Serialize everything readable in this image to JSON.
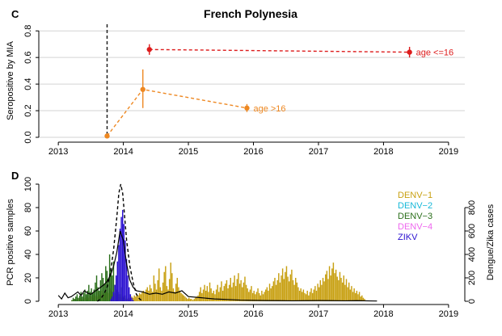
{
  "chart_data": [
    {
      "panel_label": "C",
      "type": "scatter",
      "title": "French Polynesia",
      "ylabel": "Seropositive by MIA",
      "xlabel": "",
      "xlim": [
        2012.7,
        2019.25
      ],
      "ylim": [
        0,
        0.85
      ],
      "x_ticks": [
        2013,
        2014,
        2015,
        2016,
        2017,
        2018,
        2019
      ],
      "y_ticks": [
        0.0,
        0.2,
        0.4,
        0.6,
        0.8
      ],
      "y_tick_labels": [
        "0.0",
        "0.2",
        "0.4",
        "0.6",
        "0.8"
      ],
      "grid": "horizontal",
      "vline_x": 2013.75,
      "series": [
        {
          "name": "age <=16",
          "color": "#dd1c1c",
          "points": [
            {
              "x": 2014.4,
              "y": 0.66,
              "lo": 0.62,
              "hi": 0.7
            },
            {
              "x": 2018.4,
              "y": 0.64,
              "lo": 0.6,
              "hi": 0.68
            }
          ]
        },
        {
          "name": "age >16",
          "color": "#ee8822",
          "points": [
            {
              "x": 2013.75,
              "y": 0.01,
              "lo": 0.0,
              "hi": 0.02
            },
            {
              "x": 2014.3,
              "y": 0.36,
              "lo": 0.22,
              "hi": 0.51
            },
            {
              "x": 2015.9,
              "y": 0.22,
              "lo": 0.19,
              "hi": 0.25
            }
          ]
        }
      ]
    },
    {
      "panel_label": "D",
      "type": "bar",
      "ylabel": "PCR positive samples",
      "y2label": "Dengue/Zika cases",
      "xlim": [
        2012.7,
        2019.25
      ],
      "ylim": [
        0,
        100
      ],
      "y2lim": [
        0,
        1000
      ],
      "x_ticks": [
        2013,
        2014,
        2015,
        2016,
        2017,
        2018,
        2019
      ],
      "y_ticks": [
        0,
        20,
        40,
        60,
        80,
        100
      ],
      "y2_ticks": [
        0,
        200,
        400,
        600,
        800
      ],
      "legend_position": "top-right",
      "series": [
        {
          "name": "DENV−1",
          "color": "#c8a012",
          "x_start": 2013.2,
          "step": 0.02,
          "values": [
            1,
            1,
            2,
            2,
            1,
            2,
            3,
            2,
            1,
            2,
            3,
            4,
            2,
            3,
            5,
            4,
            3,
            6,
            5,
            4,
            8,
            6,
            5,
            9,
            7,
            6,
            10,
            8,
            7,
            11,
            9,
            8,
            6,
            7,
            5,
            4,
            6,
            4,
            3,
            5,
            4,
            3,
            2,
            3,
            2,
            3,
            4,
            3,
            5,
            4,
            6,
            5,
            7,
            6,
            8,
            9,
            7,
            10,
            12,
            9,
            14,
            11,
            8,
            22,
            15,
            10,
            18,
            28,
            12,
            9,
            16,
            25,
            30,
            13,
            10,
            19,
            33,
            24,
            11,
            8,
            15,
            20,
            12,
            9,
            7,
            6,
            5,
            4,
            3,
            2,
            3,
            2,
            2,
            1,
            2,
            3,
            4,
            5,
            8,
            12,
            7,
            10,
            14,
            9,
            13,
            8,
            16,
            11,
            7,
            9,
            6,
            10,
            14,
            8,
            12,
            17,
            9,
            13,
            15,
            18,
            11,
            14,
            20,
            12,
            16,
            22,
            13,
            19,
            24,
            15,
            18,
            12,
            16,
            21,
            14,
            11,
            8,
            10,
            13,
            7,
            9,
            6,
            8,
            11,
            7,
            5,
            9,
            6,
            8,
            10,
            12,
            9,
            15,
            11,
            13,
            17,
            20,
            14,
            18,
            24,
            16,
            22,
            28,
            19,
            25,
            30,
            21,
            17,
            23,
            27,
            18,
            14,
            20,
            16,
            12,
            9,
            11,
            8,
            10,
            7,
            6,
            9,
            5,
            8,
            11,
            7,
            10,
            13,
            9,
            15,
            12,
            18,
            14,
            20,
            17,
            23,
            26,
            19,
            30,
            22,
            28,
            33,
            24,
            27,
            21,
            18,
            25,
            20,
            16,
            22,
            14,
            19,
            12,
            16,
            10,
            13,
            8,
            11,
            7,
            9,
            6,
            8,
            4,
            5,
            3,
            2
          ]
        },
        {
          "name": "DENV−2",
          "color": "#16b8d8",
          "x_start": 2013.2,
          "step": 0.02,
          "values": [
            0,
            0,
            1,
            0,
            1,
            0,
            0,
            1,
            0,
            1,
            0,
            1,
            0,
            0,
            1,
            0,
            0,
            1,
            0,
            0,
            1,
            0,
            1,
            0,
            0,
            1,
            0,
            0,
            1,
            0,
            0,
            1,
            0,
            0,
            1,
            0,
            0,
            0,
            1,
            0
          ]
        },
        {
          "name": "DENV−3",
          "color": "#2a6e1a",
          "x_start": 2013.2,
          "step": 0.02,
          "values": [
            1,
            3,
            2,
            4,
            6,
            3,
            5,
            8,
            4,
            7,
            10,
            6,
            9,
            14,
            8,
            11,
            7,
            10,
            16,
            22,
            12,
            9,
            18,
            24,
            20,
            15,
            30,
            26,
            18,
            40,
            28,
            22,
            34,
            14,
            10,
            20,
            8,
            6,
            12,
            4,
            3,
            5,
            2,
            1,
            2,
            1,
            0,
            1,
            0,
            0
          ]
        },
        {
          "name": "DENV−4",
          "color": "#ee66ee",
          "x_start": 2013.2,
          "step": 0.02,
          "values": [
            0,
            0,
            0,
            0,
            0,
            0,
            0,
            0,
            0,
            0
          ]
        },
        {
          "name": "ZIKV",
          "color": "#2a10d0",
          "x_start": 2013.8,
          "step": 0.02,
          "values": [
            2,
            4,
            8,
            14,
            22,
            34,
            48,
            62,
            72,
            78,
            66,
            52,
            36,
            22,
            12,
            6,
            3,
            1
          ]
        }
      ],
      "case_line": {
        "name": "Dengue/Zika cases",
        "color": "#000000",
        "x": [
          2013.0,
          2013.05,
          2013.1,
          2013.15,
          2013.2,
          2013.25,
          2013.3,
          2013.35,
          2013.4,
          2013.45,
          2013.5,
          2013.55,
          2013.6,
          2013.65,
          2013.7,
          2013.75,
          2013.8,
          2013.85,
          2013.9,
          2013.95,
          2014.0,
          2014.05,
          2014.1,
          2014.15,
          2014.2,
          2014.3,
          2014.4,
          2014.5,
          2014.6,
          2014.7,
          2014.8,
          2014.9,
          2015.0,
          2015.2,
          2015.4,
          2015.6,
          2015.8,
          2016.0,
          2016.2,
          2016.4,
          2016.6,
          2016.8,
          2017.0,
          2017.2,
          2017.4,
          2017.6,
          2017.8,
          2017.9
        ],
        "y": [
          50,
          20,
          70,
          30,
          40,
          60,
          80,
          50,
          90,
          70,
          60,
          80,
          100,
          120,
          140,
          170,
          220,
          300,
          420,
          600,
          520,
          320,
          180,
          120,
          90,
          80,
          60,
          70,
          60,
          80,
          70,
          90,
          40,
          30,
          20,
          15,
          10,
          8,
          6,
          5,
          4,
          5,
          6,
          5,
          4,
          5,
          3,
          2
        ]
      },
      "dashed_envelope": {
        "x": [
          2013.6,
          2013.65,
          2013.7,
          2013.75,
          2013.8,
          2013.85,
          2013.9,
          2013.93,
          2013.96,
          2013.99,
          2014.02,
          2014.05,
          2014.1,
          2014.15,
          2014.2,
          2014.25,
          2014.3
        ],
        "y": [
          0,
          2,
          6,
          12,
          24,
          44,
          72,
          92,
          100,
          92,
          72,
          52,
          30,
          16,
          6,
          2,
          0
        ]
      }
    }
  ]
}
